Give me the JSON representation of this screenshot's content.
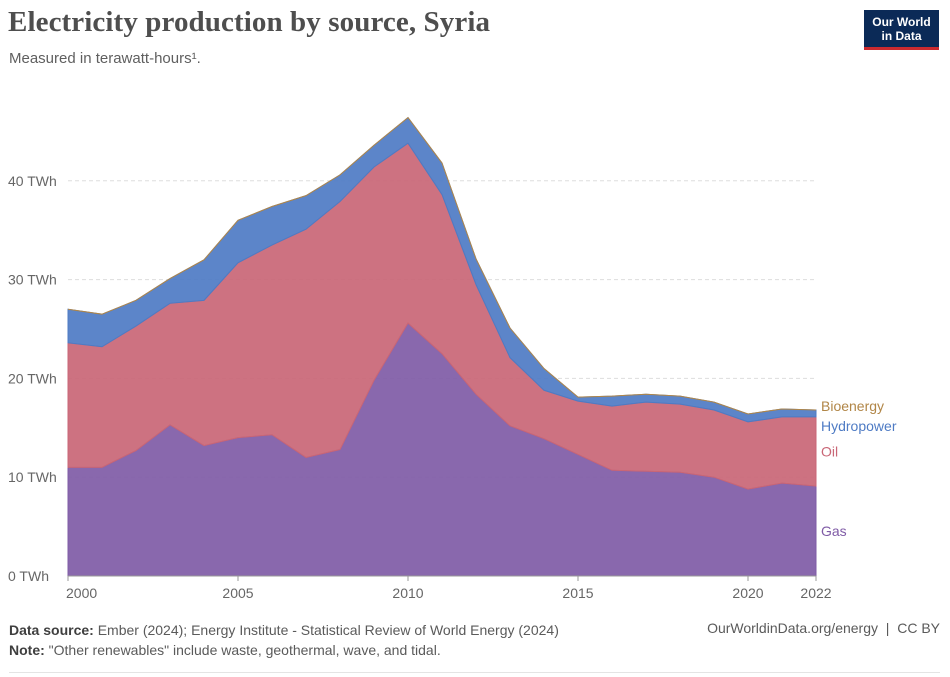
{
  "header": {
    "title": "Electricity production by source, Syria",
    "subtitle": "Measured in terawatt-hours¹."
  },
  "logo": {
    "line1": "Our World",
    "line2": "in Data"
  },
  "footer": {
    "source_label": "Data source:",
    "source_text": " Ember (2024); Energy Institute - Statistical Review of World Energy (2024)",
    "note_label": "Note:",
    "note_text": " \"Other renewables\" include waste, geothermal, wave, and tidal.",
    "url": "OurWorldinData.org/energy",
    "license": "CC BY"
  },
  "chart_data": {
    "type": "area",
    "stacked": true,
    "title": "Electricity production by source, Syria",
    "subtitle": "Measured in terawatt-hours¹.",
    "xlabel": "",
    "ylabel": "",
    "x": [
      2000,
      2001,
      2002,
      2003,
      2004,
      2005,
      2006,
      2007,
      2008,
      2009,
      2010,
      2011,
      2012,
      2013,
      2014,
      2015,
      2016,
      2017,
      2018,
      2019,
      2020,
      2021,
      2022
    ],
    "xlim": [
      1999,
      2022
    ],
    "ylim": [
      0,
      50
    ],
    "y_ticks": [
      0,
      10,
      20,
      30,
      40
    ],
    "y_tick_labels": [
      "0 TWh",
      "10 TWh",
      "20 TWh",
      "30 TWh",
      "40 TWh"
    ],
    "x_ticks": [
      2000,
      2005,
      2010,
      2015,
      2020,
      2022
    ],
    "x_tick_labels": [
      "2000",
      "2005",
      "2010",
      "2015",
      "2020",
      "2022"
    ],
    "grid": true,
    "series": [
      {
        "name": "Gas",
        "color": "#7f5ba6",
        "values": [
          11.0,
          11.0,
          12.7,
          15.3,
          13.2,
          14.0,
          14.3,
          12.0,
          12.8,
          19.8,
          25.6,
          22.5,
          18.4,
          15.2,
          13.9,
          12.3,
          10.7,
          10.6,
          10.5,
          10.0,
          8.8,
          9.4,
          9.1
        ]
      },
      {
        "name": "Oil",
        "color": "#c96676",
        "values": [
          12.6,
          12.2,
          12.6,
          12.3,
          14.7,
          17.7,
          19.2,
          23.1,
          25.1,
          21.6,
          18.2,
          16.1,
          11.1,
          6.9,
          4.9,
          5.4,
          6.5,
          7.0,
          6.9,
          6.8,
          6.8,
          6.7,
          7.0
        ]
      },
      {
        "name": "Hydropower",
        "color": "#4e7bc4",
        "values": [
          3.4,
          3.3,
          2.6,
          2.5,
          4.1,
          4.3,
          3.9,
          3.4,
          2.7,
          2.2,
          2.6,
          3.2,
          2.6,
          3.0,
          2.2,
          0.4,
          1.0,
          0.8,
          0.8,
          0.8,
          0.8,
          0.8,
          0.7
        ]
      },
      {
        "name": "Bioenergy",
        "color": "#b18647",
        "values": [
          0,
          0,
          0,
          0,
          0,
          0,
          0,
          0,
          0,
          0,
          0,
          0,
          0,
          0,
          0,
          0,
          0,
          0,
          0,
          0,
          0,
          0,
          0
        ]
      }
    ],
    "legend": "right-inline"
  }
}
